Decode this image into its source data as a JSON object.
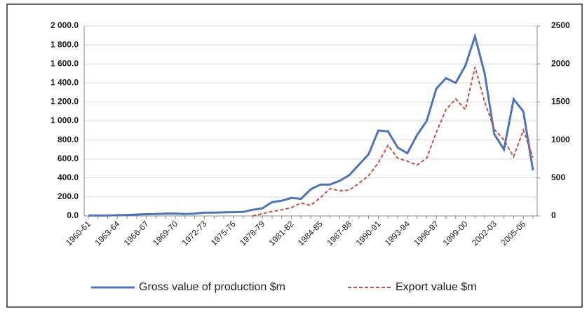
{
  "chart_data": {
    "type": "line",
    "categories": [
      "1960-61",
      null,
      null,
      "1963-64",
      null,
      null,
      "1966-67",
      null,
      null,
      "1969-70",
      null,
      null,
      "1972-73",
      null,
      null,
      "1975-76",
      null,
      null,
      "1978-79",
      null,
      null,
      "1981-82",
      null,
      null,
      "1984-85",
      null,
      null,
      "1987-88",
      null,
      null,
      "1990-91",
      null,
      null,
      "1993-94",
      null,
      null,
      "1996-97",
      null,
      null,
      "1999-00",
      null,
      null,
      "2002-03",
      null,
      null,
      "2005-06",
      null
    ],
    "series": [
      {
        "name": "Gross value of production $m",
        "color": "#4f74b4",
        "dash": false,
        "values": [
          5,
          5,
          5,
          8,
          10,
          15,
          18,
          20,
          25,
          25,
          20,
          25,
          35,
          35,
          38,
          40,
          42,
          65,
          80,
          145,
          160,
          190,
          180,
          280,
          330,
          330,
          370,
          430,
          540,
          650,
          900,
          890,
          720,
          660,
          850,
          1000,
          1340,
          1450,
          1400,
          1580,
          1890,
          1500,
          860,
          700,
          1230,
          1100,
          480
        ]
      },
      {
        "name": "Export value $m",
        "color": "#c0504d",
        "dash": true,
        "axis": "y2",
        "values": [
          null,
          null,
          null,
          null,
          null,
          null,
          null,
          null,
          null,
          null,
          null,
          null,
          null,
          null,
          null,
          null,
          null,
          0,
          30,
          60,
          80,
          110,
          170,
          140,
          240,
          360,
          330,
          340,
          430,
          530,
          700,
          930,
          760,
          720,
          670,
          760,
          1100,
          1400,
          1540,
          1400,
          1960,
          1500,
          1140,
          1000,
          780,
          1130,
          770
        ]
      }
    ],
    "ylim": [
      0,
      2000
    ],
    "yticks": [
      {
        "value": 0,
        "label": "0.0"
      },
      {
        "value": 200,
        "label": "200.0"
      },
      {
        "value": 400,
        "label": "400.0"
      },
      {
        "value": 600,
        "label": "600.0"
      },
      {
        "value": 800,
        "label": "800.0"
      },
      {
        "value": 1000,
        "label": "1 000.0"
      },
      {
        "value": 1200,
        "label": "1 200.0"
      },
      {
        "value": 1400,
        "label": "1 400.0"
      },
      {
        "value": 1600,
        "label": "1 600.0"
      },
      {
        "value": 1800,
        "label": "1 800.0"
      },
      {
        "value": 2000,
        "label": "2 000.0"
      }
    ],
    "y2lim": [
      0,
      2500
    ],
    "y2ticks": [
      0,
      500,
      1000,
      1500,
      2000,
      2500
    ],
    "grid": true
  }
}
